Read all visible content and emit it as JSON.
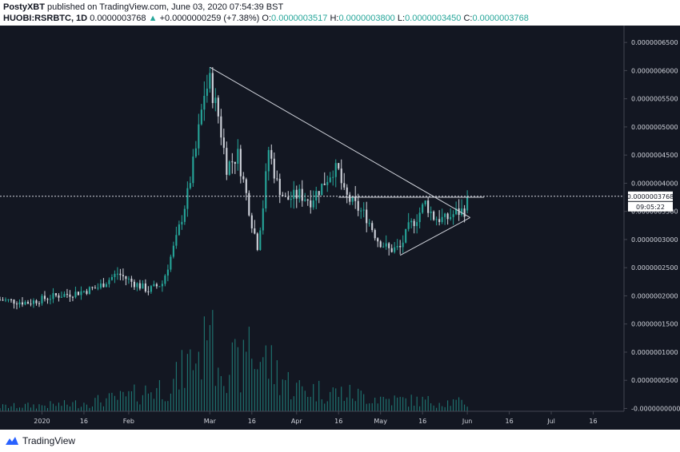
{
  "header": {
    "author": "PostyXBT",
    "published_text": "published on TradingView.com, June 03, 2020 07:54:39 BST",
    "symbol": "HUOBI:RSRBTC, 1D",
    "last": "0.0000003768",
    "change": "+0.0000000259 (+7.38%)",
    "o_label": "O:",
    "o_value": "0.0000003517",
    "h_label": "H:",
    "h_value": "0.0000003800",
    "l_label": "L:",
    "l_value": "0.0000003450",
    "c_label": "C:",
    "c_value": "0.0000003768"
  },
  "footer": {
    "brand": "TradingView"
  },
  "colors": {
    "background": "#131722",
    "up": "#26a69a",
    "down": "#d1d4dc",
    "volume": "#26a69a",
    "trendline": "#d1d4dc"
  },
  "chart_data": {
    "type": "candlestick",
    "symbol": "HUOBI:RSRBTC",
    "interval": "1D",
    "ylim": [
      -5e-09,
      6.8e-07
    ],
    "y_ticks": [
      "0.0000006500",
      "0.0000006000",
      "0.0000005500",
      "0.0000005000",
      "0.0000004500",
      "0.0000004000",
      "0.0000003500",
      "0.0000003000",
      "0.0000002500",
      "0.0000002000",
      "0.0000001500",
      "0.0000001000",
      "0.0000000500",
      "-0.0000000000"
    ],
    "y_tick_values": [
      6.5e-07,
      6e-07,
      5.5e-07,
      5e-07,
      4.5e-07,
      4e-07,
      3.5e-07,
      3e-07,
      2.5e-07,
      2e-07,
      1.5e-07,
      1e-07,
      5e-08,
      0
    ],
    "x_ticks": [
      {
        "label": "2020",
        "day": 0
      },
      {
        "label": "16",
        "day": 15
      },
      {
        "label": "Feb",
        "day": 31
      },
      {
        "label": "Mar",
        "day": 60
      },
      {
        "label": "16",
        "day": 75
      },
      {
        "label": "Apr",
        "day": 91
      },
      {
        "label": "16",
        "day": 106
      },
      {
        "label": "May",
        "day": 121
      },
      {
        "label": "16",
        "day": 136
      },
      {
        "label": "Jun",
        "day": 152
      },
      {
        "label": "16",
        "day": 167
      },
      {
        "label": "Jul",
        "day": 182
      },
      {
        "label": "16",
        "day": 197
      }
    ],
    "x_range_days": [
      -15,
      208
    ],
    "last_price_label": "0.0000003768",
    "last_price_value": 3.768e-07,
    "countdown": "09:05:22",
    "anchors": [
      {
        "day": -15,
        "close": 1.93e-07
      },
      {
        "day": -5,
        "close": 1.88e-07
      },
      {
        "day": 5,
        "close": 2e-07
      },
      {
        "day": 12,
        "close": 2.05e-07
      },
      {
        "day": 20,
        "close": 2.15e-07
      },
      {
        "day": 27,
        "close": 2.4e-07
      },
      {
        "day": 32,
        "close": 2.25e-07
      },
      {
        "day": 38,
        "close": 2.1e-07
      },
      {
        "day": 43,
        "close": 2.22e-07
      },
      {
        "day": 48,
        "close": 3e-07
      },
      {
        "day": 52,
        "close": 3.8e-07
      },
      {
        "day": 55,
        "close": 4.6e-07
      },
      {
        "day": 58,
        "close": 5.6e-07
      },
      {
        "day": 60,
        "close": 5.8e-07
      },
      {
        "day": 63,
        "close": 5.2e-07
      },
      {
        "day": 66,
        "close": 4.3e-07
      },
      {
        "day": 70,
        "close": 4.5e-07
      },
      {
        "day": 73,
        "close": 3.8e-07
      },
      {
        "day": 75,
        "close": 3.3e-07
      },
      {
        "day": 77,
        "close": 2.9e-07
      },
      {
        "day": 79,
        "close": 3.6e-07
      },
      {
        "day": 81,
        "close": 4.6e-07
      },
      {
        "day": 84,
        "close": 4e-07
      },
      {
        "day": 87,
        "close": 3.7e-07
      },
      {
        "day": 92,
        "close": 3.8e-07
      },
      {
        "day": 96,
        "close": 3.7e-07
      },
      {
        "day": 100,
        "close": 3.95e-07
      },
      {
        "day": 104,
        "close": 4.25e-07
      },
      {
        "day": 106,
        "close": 4.2e-07
      },
      {
        "day": 108,
        "close": 3.8e-07
      },
      {
        "day": 112,
        "close": 3.6e-07
      },
      {
        "day": 116,
        "close": 3.4e-07
      },
      {
        "day": 120,
        "close": 3e-07
      },
      {
        "day": 124,
        "close": 2.82e-07
      },
      {
        "day": 128,
        "close": 2.85e-07
      },
      {
        "day": 131,
        "close": 3.2e-07
      },
      {
        "day": 134,
        "close": 3.4e-07
      },
      {
        "day": 137,
        "close": 3.65e-07
      },
      {
        "day": 140,
        "close": 3.4e-07
      },
      {
        "day": 144,
        "close": 3.35e-07
      },
      {
        "day": 148,
        "close": 3.48e-07
      },
      {
        "day": 151,
        "close": 3.52e-07
      },
      {
        "day": 152,
        "close": 3.77e-07
      }
    ],
    "volume_ylim": [
      0,
      1.8e-07
    ],
    "volume_anchors": [
      {
        "day": -15,
        "v": 1e-08
      },
      {
        "day": 10,
        "v": 1.5e-08
      },
      {
        "day": 30,
        "v": 3e-08
      },
      {
        "day": 47,
        "v": 6e-08
      },
      {
        "day": 55,
        "v": 1.2e-07
      },
      {
        "day": 60,
        "v": 1.4e-07
      },
      {
        "day": 70,
        "v": 9e-08
      },
      {
        "day": 78,
        "v": 1.2e-07
      },
      {
        "day": 90,
        "v": 5e-08
      },
      {
        "day": 106,
        "v": 4e-08
      },
      {
        "day": 125,
        "v": 2.5e-08
      },
      {
        "day": 152,
        "v": 1.8e-08
      }
    ],
    "trendlines": [
      {
        "x1_day": 60,
        "y1": 6.06e-07,
        "x2_day": 153,
        "y2": 3.39e-07
      },
      {
        "x1_day": 128,
        "y1": 2.72e-07,
        "x2_day": 153,
        "y2": 3.39e-07
      },
      {
        "x1_day": 106,
        "y1": 3.75e-07,
        "x2_day": 158,
        "y2": 3.75e-07
      }
    ]
  }
}
